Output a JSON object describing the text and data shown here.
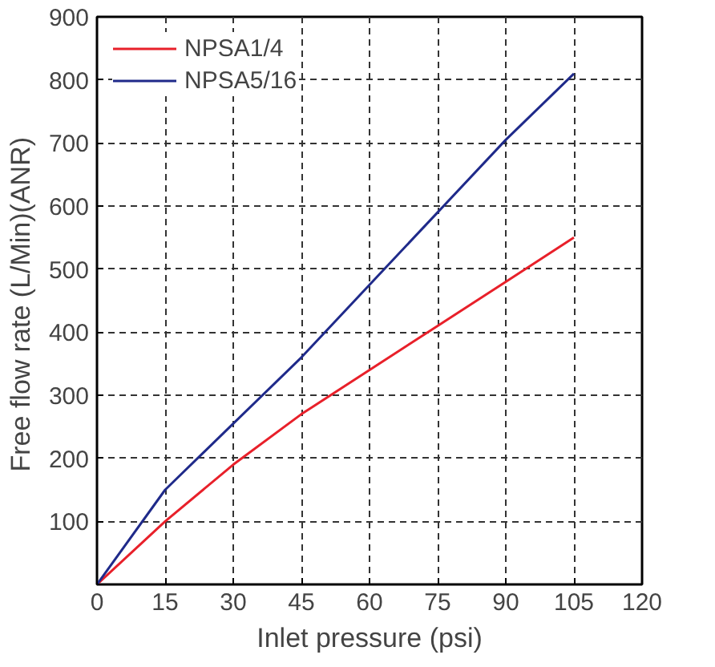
{
  "chart_data": {
    "type": "line",
    "xlabel": "Inlet pressure (psi)",
    "ylabel": "Free flow rate  (L/Min)(ANR)",
    "xlim": [
      0,
      120
    ],
    "ylim": [
      0,
      900
    ],
    "xticks": [
      0,
      15,
      30,
      45,
      60,
      75,
      90,
      105,
      120
    ],
    "yticks": [
      100,
      200,
      300,
      400,
      500,
      600,
      700,
      800,
      900
    ],
    "grid": true,
    "legend": "top",
    "line_style": "solid",
    "series": [
      {
        "name": "NPSA1/4",
        "color": "#e8202a",
        "x": [
          0,
          15,
          30,
          45,
          60,
          75,
          90,
          105
        ],
        "values": [
          0,
          100,
          190,
          270,
          340,
          410,
          480,
          550
        ]
      },
      {
        "name": "NPSA5/16",
        "color": "#1f2a8a",
        "x": [
          0,
          15,
          30,
          45,
          60,
          75,
          90,
          105
        ],
        "values": [
          0,
          150,
          255,
          360,
          475,
          590,
          705,
          810
        ]
      }
    ]
  }
}
